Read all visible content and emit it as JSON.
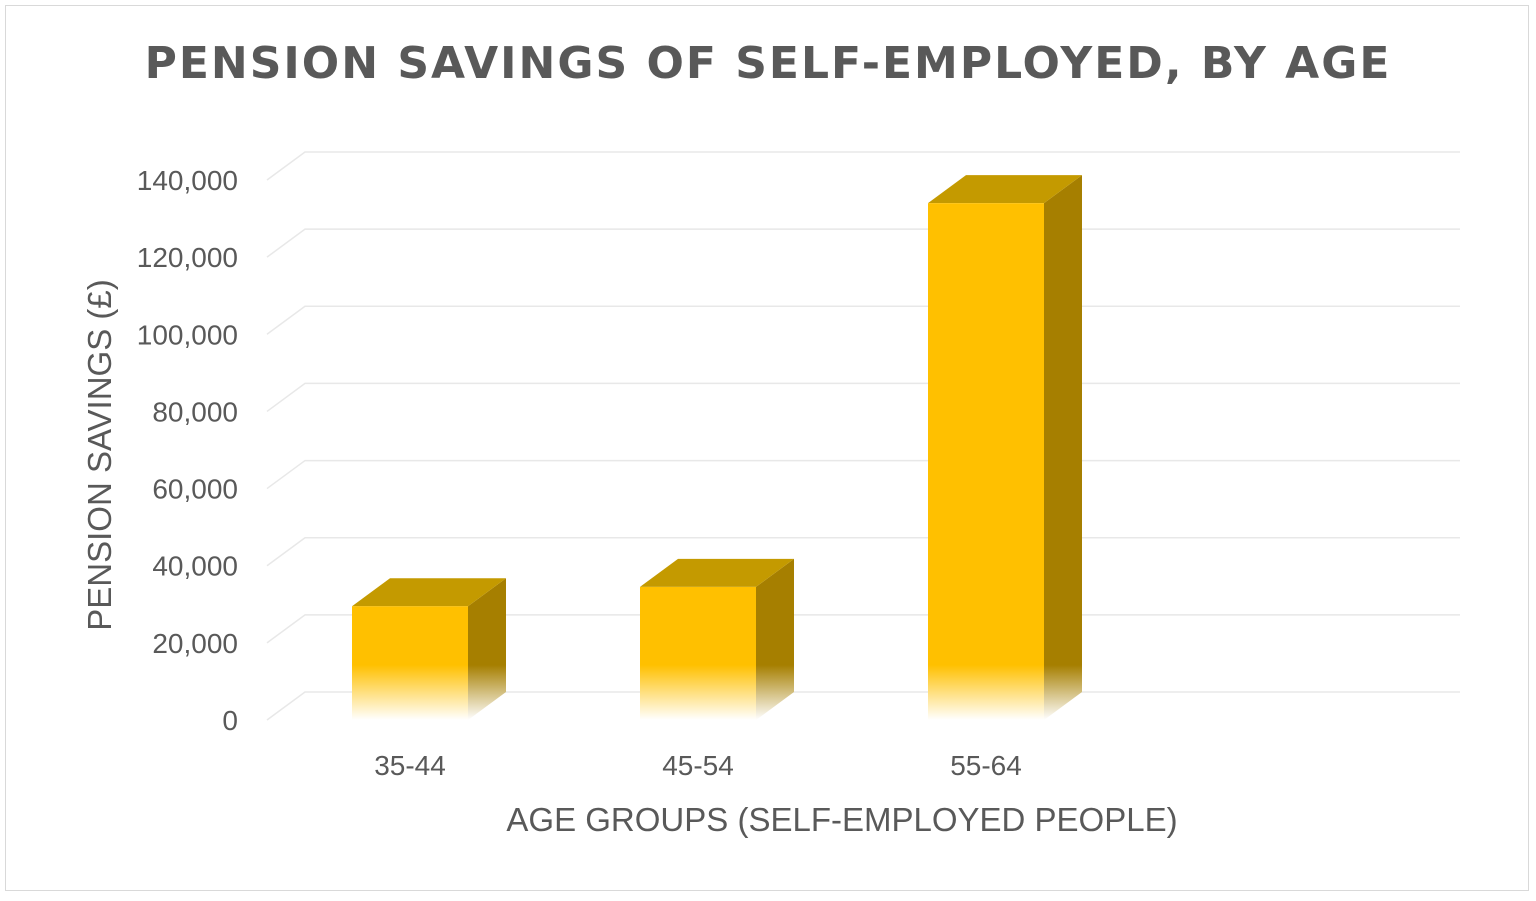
{
  "chart_data": {
    "type": "bar",
    "title": "PENSION SAVINGS OF SELF-EMPLOYED, BY AGE",
    "xlabel": "AGE GROUPS (SELF-EMPLOYED PEOPLE)",
    "ylabel": "PENSION SAVINGS (£)",
    "categories": [
      "35-44",
      "45-54",
      "55-64"
    ],
    "values": [
      29500,
      34500,
      134000
    ],
    "ylim": [
      0,
      140000
    ],
    "yticks": [
      "0",
      "20,000",
      "40,000",
      "60,000",
      "80,000",
      "100,000",
      "120,000",
      "140,000"
    ],
    "grid": true,
    "legend": "none",
    "style": "3d-column",
    "colors": {
      "bar_front": "#FFC000",
      "bar_top": "#C49A00",
      "bar_side": "#A67F00",
      "gridline": "#e8e8e8",
      "text": "#595959"
    }
  }
}
